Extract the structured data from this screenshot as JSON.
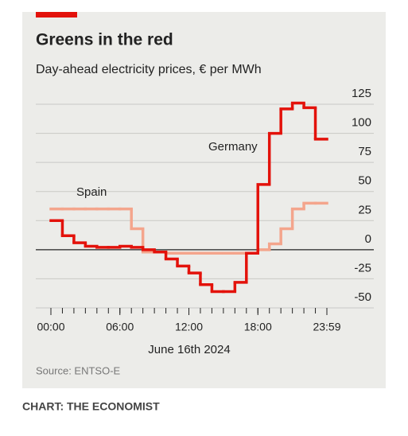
{
  "chart_data": {
    "type": "step",
    "title": "Greens in the red",
    "subtitle": "Day-ahead electricity prices, € per MWh",
    "x_label": "June 16th 2024",
    "source": "Source: ENTSO-E",
    "credit": "CHART: THE ECONOMIST",
    "x": [
      0,
      1,
      2,
      3,
      4,
      5,
      6,
      7,
      8,
      9,
      10,
      11,
      12,
      13,
      14,
      15,
      16,
      17,
      18,
      19,
      20,
      21,
      22,
      23
    ],
    "xlim": [
      0,
      24
    ],
    "xticks": [
      {
        "value": 0,
        "label": "00:00"
      },
      {
        "value": 6,
        "label": "06:00"
      },
      {
        "value": 12,
        "label": "12:00"
      },
      {
        "value": 18,
        "label": "18:00"
      },
      {
        "value": 24,
        "label": "23:59"
      }
    ],
    "ylim": [
      -50,
      125
    ],
    "yticks": [
      -50,
      -25,
      0,
      25,
      50,
      75,
      100,
      125
    ],
    "grid": true,
    "series": [
      {
        "name": "Spain",
        "color": "#f4a58c",
        "values": [
          35,
          35,
          35,
          35,
          35,
          35,
          35,
          18,
          -2,
          -2,
          -3,
          -3,
          -3,
          -3,
          -3,
          -3,
          -3,
          -3,
          0,
          5,
          18,
          35,
          40,
          40
        ]
      },
      {
        "name": "Germany",
        "color": "#e3120b",
        "values": [
          25,
          12,
          6,
          3,
          2,
          2,
          3,
          2,
          0,
          -2,
          -8,
          -14,
          -20,
          -30,
          -36,
          -36,
          -28,
          -3,
          56,
          100,
          121,
          126,
          122,
          95
        ]
      }
    ]
  }
}
